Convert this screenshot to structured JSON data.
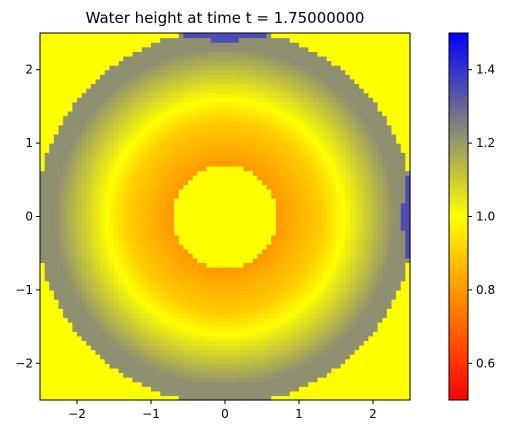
{
  "chart_data": {
    "type": "heatmap",
    "title": "Water height at time t =     1.75000000",
    "xlabel": "",
    "ylabel": "",
    "xlim": [
      -2.5,
      2.5
    ],
    "ylim": [
      -2.5,
      2.5
    ],
    "x_ticks": [
      -2,
      -1,
      0,
      1,
      2
    ],
    "y_ticks": [
      -2,
      -1,
      0,
      1,
      2
    ],
    "x_tick_labels": [
      "−2",
      "−1",
      "0",
      "1",
      "2"
    ],
    "y_tick_labels": [
      "−2",
      "−1",
      "0",
      "1",
      "2"
    ],
    "grid": false,
    "colorbar": {
      "range": [
        0.5,
        1.5
      ],
      "ticks": [
        0.6,
        0.8,
        1.0,
        1.2,
        1.4
      ],
      "tick_labels": [
        "0.6",
        "0.8",
        "1.0",
        "1.2",
        "1.4"
      ],
      "colors": [
        {
          "value": 0.5,
          "color": "#ff0000"
        },
        {
          "value": 1.0,
          "color": "#ffff00"
        },
        {
          "value": 1.25,
          "color": "#808080"
        },
        {
          "value": 1.5,
          "color": "#0000ff"
        }
      ]
    },
    "field": {
      "background_value": 1.0,
      "center": [
        0,
        0
      ],
      "inner_disk": {
        "radius": 0.7,
        "value": 1.0
      },
      "ring_profile": [
        {
          "r": 0.7,
          "value": 0.8
        },
        {
          "r": 1.3,
          "value": 0.9
        },
        {
          "r": 1.6,
          "value": 1.0
        },
        {
          "r": 2.3,
          "value": 1.22
        },
        {
          "r": 2.55,
          "value": 1.22
        }
      ],
      "outer_radius": 2.55,
      "reflection_blobs": [
        {
          "center": [
            0,
            2.5
          ],
          "axes": [
            0.6,
            0.1
          ],
          "value": 1.35
        },
        {
          "center": [
            2.5,
            0
          ],
          "axes": [
            0.1,
            0.6
          ],
          "value": 1.35
        }
      ]
    }
  }
}
